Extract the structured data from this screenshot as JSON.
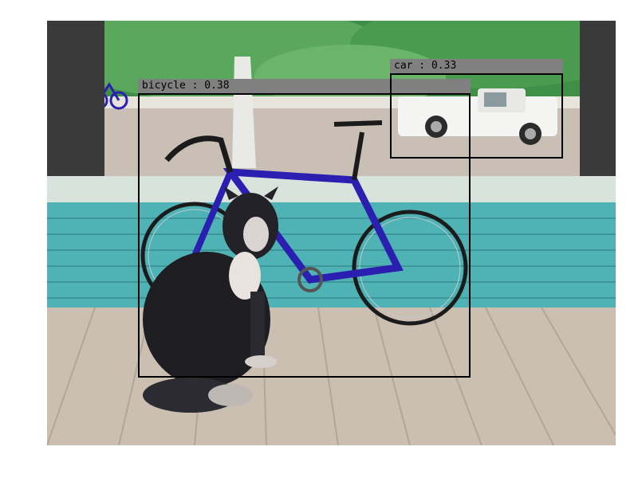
{
  "detections": [
    {
      "class": "bicycle",
      "confidence": "0.38",
      "label": "bicycle : 0.38"
    },
    {
      "class": "car",
      "confidence": "0.33",
      "label": "car : 0.33"
    }
  ],
  "colors": {
    "box_stroke": "#000000",
    "label_background": "#808080",
    "label_text": "#000000",
    "bicycle_frame": "#2a1fb0",
    "porch_siding": "#4fb3b5"
  }
}
